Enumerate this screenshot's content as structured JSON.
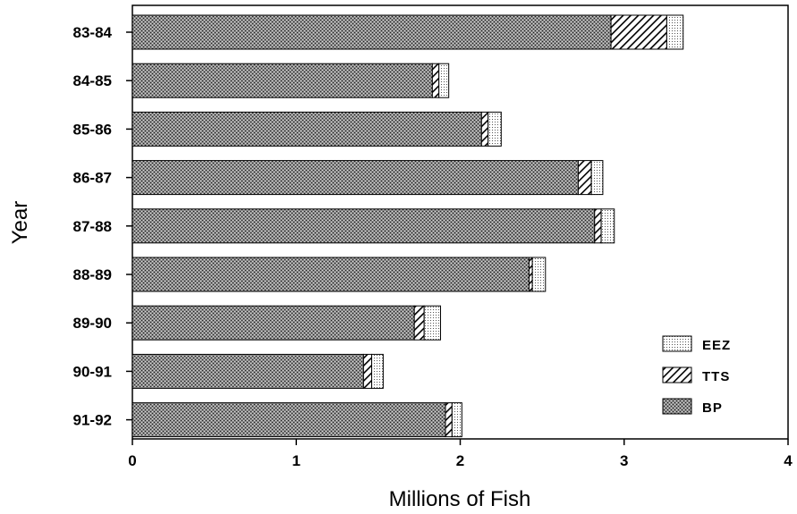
{
  "chart_data": {
    "type": "bar",
    "orientation": "horizontal",
    "stacked": true,
    "title": "",
    "xlabel": "Millions of Fish",
    "ylabel": "Year",
    "xlim": [
      0,
      4
    ],
    "xticks": [
      "0",
      "1",
      "2",
      "3",
      "4"
    ],
    "categories": [
      "83-84",
      "84-85",
      "85-86",
      "86-87",
      "87-88",
      "88-89",
      "89-90",
      "90-91",
      "91-92"
    ],
    "series": [
      {
        "name": "BP",
        "values": [
          2.92,
          1.83,
          2.13,
          2.72,
          2.82,
          2.42,
          1.72,
          1.41,
          1.91
        ]
      },
      {
        "name": "TTS",
        "values": [
          0.34,
          0.04,
          0.04,
          0.08,
          0.04,
          0.02,
          0.06,
          0.05,
          0.04
        ]
      },
      {
        "name": "EEZ",
        "values": [
          0.1,
          0.06,
          0.08,
          0.07,
          0.08,
          0.08,
          0.1,
          0.07,
          0.06
        ]
      }
    ],
    "legend": {
      "placement": "bottom-right",
      "order": [
        "EEZ",
        "TTS",
        "BP"
      ]
    },
    "grid": false
  }
}
